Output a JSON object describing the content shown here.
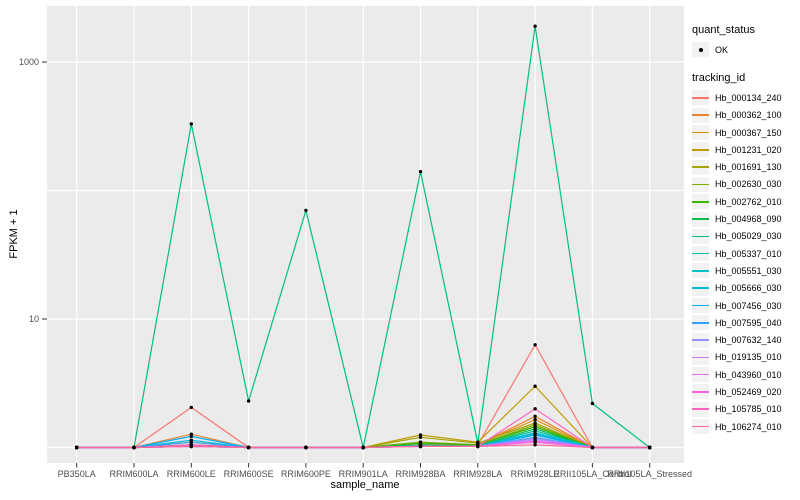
{
  "figure": {
    "background": "#FFFFFF",
    "panel_bg": "#EBEBEB",
    "grid_color": "#FFFFFF",
    "tick_color": "#333333",
    "tick_label_color": "#4D4D4D",
    "key_bg": "#F2F2F2",
    "point_color": "#000000"
  },
  "legend": {
    "quant_status": {
      "title": "quant_status",
      "items": [
        {
          "label": "OK",
          "symbol": "black-point"
        }
      ]
    },
    "tracking_id": {
      "title": "tracking_id"
    }
  },
  "chart_data": {
    "type": "line",
    "title": "",
    "xlabel": "sample_name",
    "ylabel": "FPKM + 1",
    "y_scale": "log10",
    "ylim": [
      0.76,
      2700
    ],
    "y_ticks": [
      {
        "value": 1000,
        "label": "1000"
      },
      {
        "value": 10,
        "label": "10"
      }
    ],
    "y_gridline_values": [
      1,
      10,
      100,
      1000
    ],
    "grid": "major-only, white on grey panel",
    "legend_position": "right",
    "point_marker": "black dot on every observation (quant_status = OK)",
    "categories": [
      "PB350LA",
      "RRIM600LA",
      "RRIM600LE",
      "RRIM600SE",
      "RRIM600PE",
      "RRIM901LA",
      "RRIM928BA",
      "RRIM928LA",
      "RRIM928LE",
      "RRII105LA_Control",
      "RRII105LA_Stressed"
    ],
    "series": [
      {
        "name": "Hb_000134_240",
        "color": "#F8766D",
        "values": [
          1,
          1,
          2.05,
          1,
          1,
          1,
          1.05,
          1.05,
          6.3,
          1,
          1
        ]
      },
      {
        "name": "Hb_000362_100",
        "color": "#EA8331",
        "values": [
          1,
          1,
          1.27,
          1,
          1,
          1,
          1.05,
          1.05,
          1.75,
          1,
          1
        ]
      },
      {
        "name": "Hb_000367_150",
        "color": "#D89000",
        "values": [
          1,
          1,
          1.1,
          1,
          1,
          1,
          1.1,
          1.05,
          1.65,
          1,
          1
        ]
      },
      {
        "name": "Hb_001231_020",
        "color": "#C09B00",
        "values": [
          1,
          1,
          1.05,
          1,
          1,
          1,
          1.25,
          1.1,
          3.0,
          1,
          1
        ]
      },
      {
        "name": "Hb_001691_130",
        "color": "#A3A500",
        "values": [
          1,
          1,
          1.05,
          1,
          1,
          1,
          1.2,
          1.08,
          1.55,
          1,
          1
        ]
      },
      {
        "name": "Hb_002630_030",
        "color": "#7CAE00",
        "values": [
          1,
          1,
          1.02,
          1,
          1,
          1,
          1.1,
          1.05,
          1.5,
          1,
          1
        ]
      },
      {
        "name": "Hb_002762_010",
        "color": "#39B600",
        "values": [
          1,
          1,
          1.02,
          1,
          1,
          1,
          1.08,
          1.05,
          1.45,
          1,
          1
        ]
      },
      {
        "name": "Hb_004968_090",
        "color": "#00BB4E",
        "values": [
          1,
          1,
          1.02,
          1,
          1,
          1,
          1.05,
          1.03,
          1.4,
          1,
          1
        ]
      },
      {
        "name": "Hb_005029_030",
        "color": "#00BF7D",
        "values": [
          1,
          1,
          330,
          2.3,
          70,
          1,
          140,
          1.08,
          1900,
          2.2,
          1
        ]
      },
      {
        "name": "Hb_005337_010",
        "color": "#00C1A3",
        "values": [
          1,
          1,
          1.02,
          1,
          1,
          1,
          1.03,
          1.02,
          1.35,
          1,
          1
        ]
      },
      {
        "name": "Hb_005551_030",
        "color": "#00BFC4",
        "values": [
          1,
          1,
          1.05,
          1,
          1,
          1,
          1.03,
          1.02,
          1.3,
          1,
          1
        ]
      },
      {
        "name": "Hb_005666_030",
        "color": "#00BBDA",
        "values": [
          1,
          1,
          1.14,
          1,
          1,
          1,
          1.02,
          1.02,
          1.28,
          1,
          1
        ]
      },
      {
        "name": "Hb_007456_030",
        "color": "#00B0F6",
        "values": [
          1,
          1,
          1.22,
          1,
          1,
          1,
          1.02,
          1.02,
          1.25,
          1,
          1
        ]
      },
      {
        "name": "Hb_007595_040",
        "color": "#35A2FF",
        "values": [
          1,
          1,
          1.1,
          1,
          1,
          1,
          1.02,
          1.02,
          1.2,
          1,
          1
        ]
      },
      {
        "name": "Hb_007632_140",
        "color": "#9590FF",
        "values": [
          1,
          1,
          1.02,
          1,
          1,
          1,
          1.02,
          1.02,
          1.18,
          1,
          1
        ]
      },
      {
        "name": "Hb_019135_010",
        "color": "#C77CFF",
        "values": [
          1,
          1,
          1.02,
          1,
          1,
          1,
          1.02,
          1.02,
          1.15,
          1,
          1
        ]
      },
      {
        "name": "Hb_043960_010",
        "color": "#E76BF3",
        "values": [
          1,
          1,
          1.02,
          1,
          1,
          1,
          1.02,
          1.02,
          1.12,
          1,
          1
        ]
      },
      {
        "name": "Hb_052469_020",
        "color": "#FA62DB",
        "values": [
          1,
          1,
          1.02,
          1,
          1,
          1,
          1.02,
          1.02,
          1.1,
          1,
          1
        ]
      },
      {
        "name": "Hb_105785_010",
        "color": "#FF62BC",
        "values": [
          1,
          1,
          1.05,
          1,
          1,
          1,
          1.02,
          1.02,
          2.0,
          1,
          1
        ]
      },
      {
        "name": "Hb_106274_010",
        "color": "#FF6A98",
        "values": [
          1,
          1,
          1.02,
          1,
          1,
          1,
          1.02,
          1.02,
          1.05,
          1,
          1
        ]
      }
    ]
  }
}
